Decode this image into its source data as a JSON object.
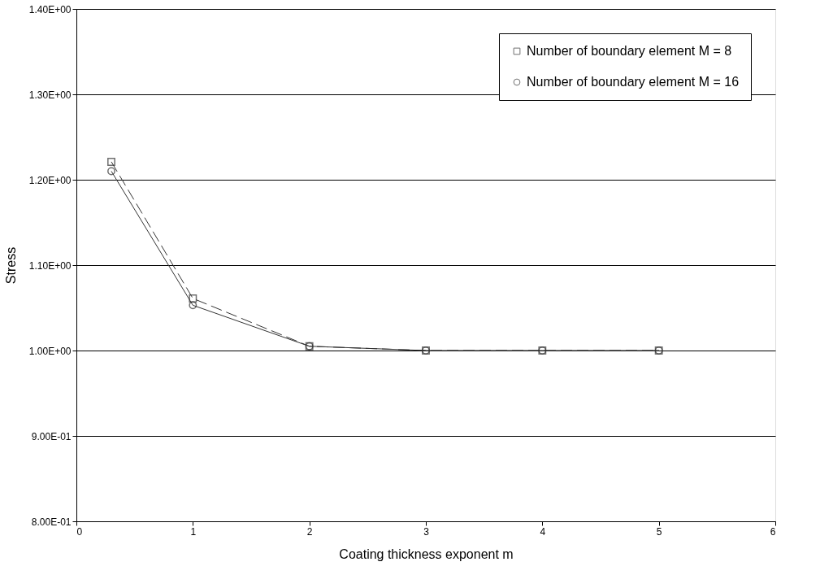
{
  "chart_data": {
    "type": "line",
    "xlabel": "Coating thickness exponent m",
    "ylabel": "Stress",
    "x": [
      0.3,
      1,
      2,
      3,
      4,
      5
    ],
    "series": [
      {
        "name": "Number of boundary element M = 8",
        "color": "#333333",
        "marker": "square",
        "line_style": "dashed",
        "values": [
          1.221,
          1.061,
          1.005,
          1.0,
          1.0,
          1.0
        ]
      },
      {
        "name": "Number of boundary element M = 16",
        "color": "#333333",
        "marker": "circle",
        "line_style": "solid",
        "values": [
          1.21,
          1.053,
          1.005,
          1.0,
          1.0,
          1.0
        ]
      }
    ],
    "xlim": [
      0,
      6
    ],
    "xticks": [
      0,
      1,
      2,
      3,
      4,
      5,
      6
    ],
    "ylim": [
      0.8,
      1.4
    ],
    "yticks": [
      {
        "value": 0.8,
        "label": "8.00E-01"
      },
      {
        "value": 0.9,
        "label": "9.00E-01"
      },
      {
        "value": 1.0,
        "label": "1.00E+00"
      },
      {
        "value": 1.1,
        "label": "1.10E+00"
      },
      {
        "value": 1.2,
        "label": "1.20E+00"
      },
      {
        "value": 1.3,
        "label": "1.30E+00"
      },
      {
        "value": 1.4,
        "label": "1.40E+00"
      }
    ],
    "grid": "y",
    "legend": "top right"
  }
}
